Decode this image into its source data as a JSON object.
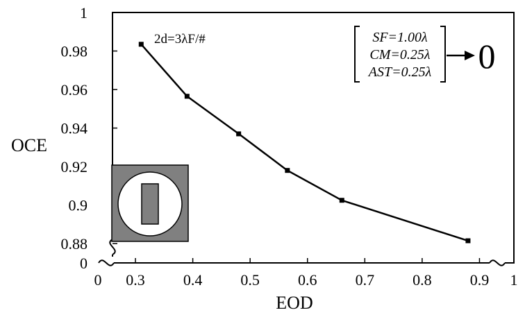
{
  "chart_data": {
    "type": "line",
    "xlabel": "EOD",
    "ylabel": "OCE",
    "xlim": [
      0.26,
      0.96
    ],
    "ylim": [
      0.87,
      1.0
    ],
    "x_ticks": [
      {
        "value": 0.3,
        "label": "0.3"
      },
      {
        "value": 0.4,
        "label": "0.4"
      },
      {
        "value": 0.5,
        "label": "0.5"
      },
      {
        "value": 0.6,
        "label": "0.6"
      },
      {
        "value": 0.7,
        "label": "0.7"
      },
      {
        "value": 0.8,
        "label": "0.8"
      },
      {
        "value": 0.9,
        "label": "0.9"
      }
    ],
    "y_ticks": [
      {
        "value": 0.88,
        "label": "0.88"
      },
      {
        "value": 0.9,
        "label": "0.9"
      },
      {
        "value": 0.92,
        "label": "0.92"
      },
      {
        "value": 0.94,
        "label": "0.94"
      },
      {
        "value": 0.96,
        "label": "0.96"
      },
      {
        "value": 0.98,
        "label": "0.98"
      },
      {
        "value": 1.0,
        "label": "1"
      }
    ],
    "axis_break_labels": {
      "x_zero": "0",
      "x_one": "1",
      "y_zero": "0"
    },
    "series": [
      {
        "x": [
          0.31,
          0.39,
          0.48,
          0.565,
          0.66,
          0.88
        ],
        "y": [
          0.9835,
          0.9565,
          0.937,
          0.918,
          0.9025,
          0.8815
        ],
        "color": "#000000"
      }
    ],
    "annotations": {
      "relation": "2d=3λF/#",
      "params": [
        "SF=1.00λ",
        "CM=0.25λ",
        "AST=0.25λ"
      ],
      "arrow_target": "0"
    },
    "grid": false,
    "legend": "none"
  }
}
